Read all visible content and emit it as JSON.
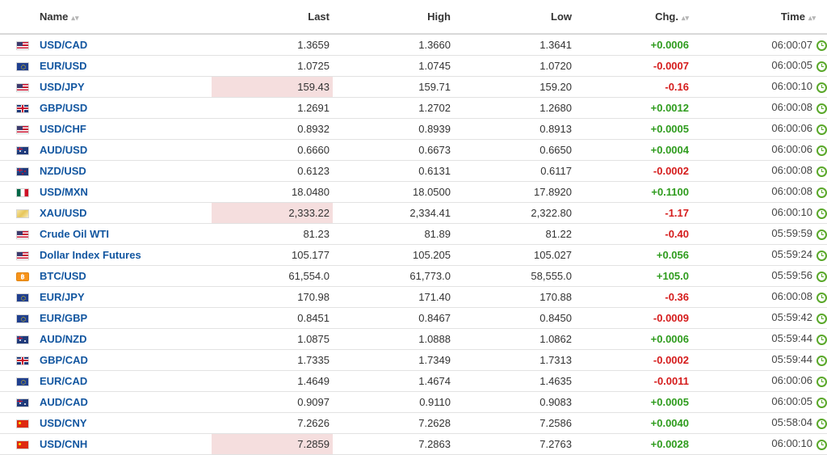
{
  "header": {
    "name": "Name",
    "last": "Last",
    "high": "High",
    "low": "Low",
    "chg": "Chg.",
    "time": "Time"
  },
  "rows": [
    {
      "flag": "us",
      "name": "USD/CAD",
      "last": "1.3659",
      "high": "1.3660",
      "low": "1.3641",
      "chg": "+0.0006",
      "dir": "pos",
      "time": "06:00:07",
      "highlight": false
    },
    {
      "flag": "eu",
      "name": "EUR/USD",
      "last": "1.0725",
      "high": "1.0745",
      "low": "1.0720",
      "chg": "-0.0007",
      "dir": "neg",
      "time": "06:00:05",
      "highlight": false
    },
    {
      "flag": "us",
      "name": "USD/JPY",
      "last": "159.43",
      "high": "159.71",
      "low": "159.20",
      "chg": "-0.16",
      "dir": "neg",
      "time": "06:00:10",
      "highlight": true
    },
    {
      "flag": "uk",
      "name": "GBP/USD",
      "last": "1.2691",
      "high": "1.2702",
      "low": "1.2680",
      "chg": "+0.0012",
      "dir": "pos",
      "time": "06:00:08",
      "highlight": false
    },
    {
      "flag": "us",
      "name": "USD/CHF",
      "last": "0.8932",
      "high": "0.8939",
      "low": "0.8913",
      "chg": "+0.0005",
      "dir": "pos",
      "time": "06:00:06",
      "highlight": false
    },
    {
      "flag": "au",
      "name": "AUD/USD",
      "last": "0.6660",
      "high": "0.6673",
      "low": "0.6650",
      "chg": "+0.0004",
      "dir": "pos",
      "time": "06:00:06",
      "highlight": false
    },
    {
      "flag": "nz",
      "name": "NZD/USD",
      "last": "0.6123",
      "high": "0.6131",
      "low": "0.6117",
      "chg": "-0.0002",
      "dir": "neg",
      "time": "06:00:08",
      "highlight": false
    },
    {
      "flag": "mx",
      "name": "USD/MXN",
      "last": "18.0480",
      "high": "18.0500",
      "low": "17.8920",
      "chg": "+0.1100",
      "dir": "pos",
      "time": "06:00:08",
      "highlight": false
    },
    {
      "flag": "gold",
      "name": "XAU/USD",
      "last": "2,333.22",
      "high": "2,334.41",
      "low": "2,322.80",
      "chg": "-1.17",
      "dir": "neg",
      "time": "06:00:10",
      "highlight": true
    },
    {
      "flag": "us",
      "name": "Crude Oil WTI",
      "last": "81.23",
      "high": "81.89",
      "low": "81.22",
      "chg": "-0.40",
      "dir": "neg",
      "time": "05:59:59",
      "highlight": false
    },
    {
      "flag": "us",
      "name": "Dollar Index Futures",
      "last": "105.177",
      "high": "105.205",
      "low": "105.027",
      "chg": "+0.056",
      "dir": "pos",
      "time": "05:59:24",
      "highlight": false
    },
    {
      "flag": "btc",
      "name": "BTC/USD",
      "last": "61,554.0",
      "high": "61,773.0",
      "low": "58,555.0",
      "chg": "+105.0",
      "dir": "pos",
      "time": "05:59:56",
      "highlight": false
    },
    {
      "flag": "eu",
      "name": "EUR/JPY",
      "last": "170.98",
      "high": "171.40",
      "low": "170.88",
      "chg": "-0.36",
      "dir": "neg",
      "time": "06:00:08",
      "highlight": false
    },
    {
      "flag": "eu",
      "name": "EUR/GBP",
      "last": "0.8451",
      "high": "0.8467",
      "low": "0.8450",
      "chg": "-0.0009",
      "dir": "neg",
      "time": "05:59:42",
      "highlight": false
    },
    {
      "flag": "au",
      "name": "AUD/NZD",
      "last": "1.0875",
      "high": "1.0888",
      "low": "1.0862",
      "chg": "+0.0006",
      "dir": "pos",
      "time": "05:59:44",
      "highlight": false
    },
    {
      "flag": "uk",
      "name": "GBP/CAD",
      "last": "1.7335",
      "high": "1.7349",
      "low": "1.7313",
      "chg": "-0.0002",
      "dir": "neg",
      "time": "05:59:44",
      "highlight": false
    },
    {
      "flag": "eu",
      "name": "EUR/CAD",
      "last": "1.4649",
      "high": "1.4674",
      "low": "1.4635",
      "chg": "-0.0011",
      "dir": "neg",
      "time": "06:00:06",
      "highlight": false
    },
    {
      "flag": "au",
      "name": "AUD/CAD",
      "last": "0.9097",
      "high": "0.9110",
      "low": "0.9083",
      "chg": "+0.0005",
      "dir": "pos",
      "time": "06:00:05",
      "highlight": false
    },
    {
      "flag": "cn",
      "name": "USD/CNY",
      "last": "7.2626",
      "high": "7.2628",
      "low": "7.2586",
      "chg": "+0.0040",
      "dir": "pos",
      "time": "05:58:04",
      "highlight": false
    },
    {
      "flag": "cn",
      "name": "USD/CNH",
      "last": "7.2859",
      "high": "7.2863",
      "low": "7.2763",
      "chg": "+0.0028",
      "dir": "pos",
      "time": "06:00:10",
      "highlight": true
    }
  ],
  "colors": {
    "positive": "#2f9c1e",
    "negative": "#d51c1c",
    "link": "#1256a0",
    "highlight": "#f5dede",
    "clock": "#5aa82a"
  },
  "icons": {
    "sort": "sort-icon",
    "clock": "clock-icon"
  }
}
